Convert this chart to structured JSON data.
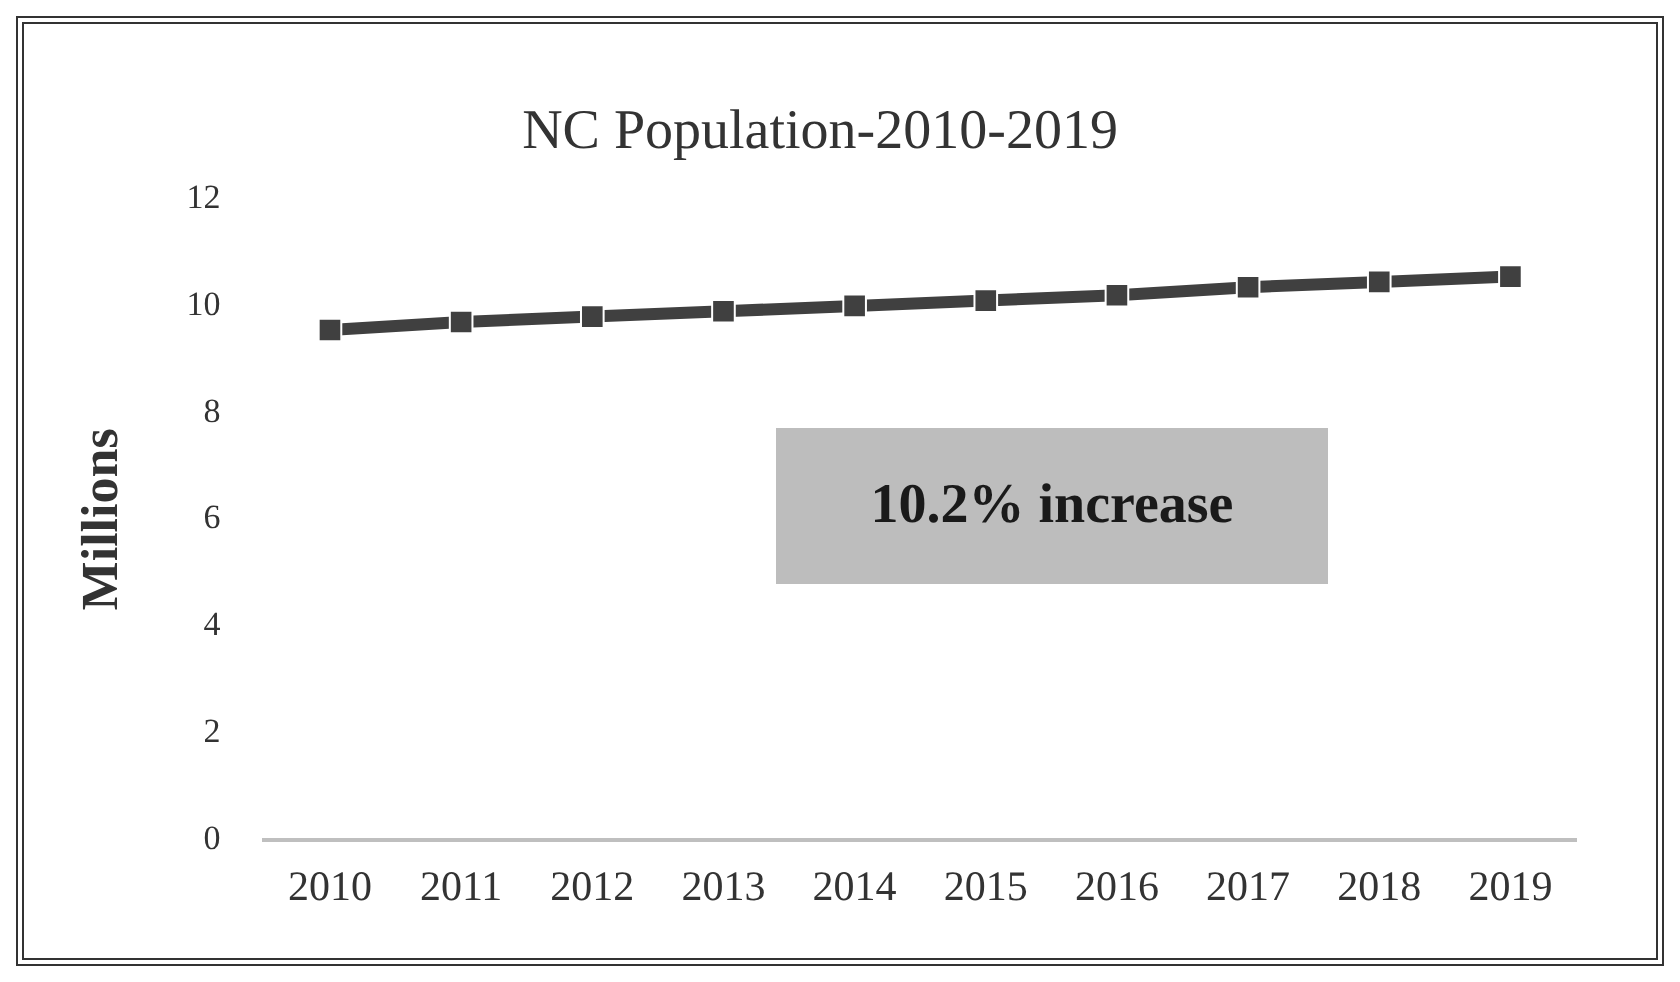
{
  "chart_data": {
    "type": "line",
    "title": "NC Population-2010-2019",
    "ylabel": "Millions",
    "categories": [
      "2010",
      "2011",
      "2012",
      "2013",
      "2014",
      "2015",
      "2016",
      "2017",
      "2018",
      "2019"
    ],
    "series": [
      {
        "color": "#404040",
        "values": [
          9.55,
          9.7,
          9.8,
          9.9,
          10.0,
          10.1,
          10.2,
          10.35,
          10.45,
          10.55
        ]
      }
    ],
    "ylim": [
      0,
      12
    ],
    "yticks": [
      0,
      2,
      4,
      6,
      8,
      10,
      12
    ],
    "grid": false,
    "legend": false,
    "marker": "square",
    "line_style": "solid",
    "annotations": [
      "10.2% increase"
    ]
  }
}
